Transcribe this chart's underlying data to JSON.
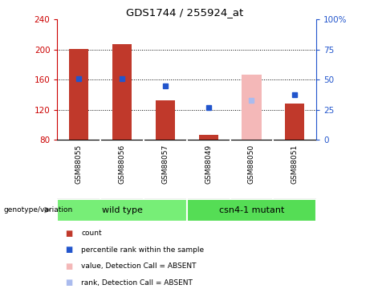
{
  "title": "GDS1744 / 255924_at",
  "samples": [
    "GSM88055",
    "GSM88056",
    "GSM88057",
    "GSM88049",
    "GSM88050",
    "GSM88051"
  ],
  "group_labels": [
    "wild type",
    "csn4-1 mutant"
  ],
  "count_values": [
    201,
    207,
    133,
    87,
    null,
    128
  ],
  "count_absent": [
    null,
    null,
    null,
    null,
    167,
    null
  ],
  "rank_values": [
    161,
    161,
    152,
    123,
    null,
    140
  ],
  "rank_absent": [
    null,
    null,
    null,
    null,
    133,
    null
  ],
  "ylim_left": [
    80,
    240
  ],
  "ylim_right": [
    0,
    100
  ],
  "yticks_left": [
    80,
    120,
    160,
    200,
    240
  ],
  "yticks_right": [
    0,
    25,
    50,
    75,
    100
  ],
  "bar_color": "#c0392b",
  "bar_absent_color": "#f4b8b8",
  "rank_color": "#2255cc",
  "rank_absent_color": "#aabbee",
  "bg_color": "#ffffff",
  "wt_group_color": "#77ee77",
  "mut_group_color": "#55dd55",
  "sample_bg_color": "#cccccc",
  "left_axis_color": "#cc0000",
  "right_axis_color": "#2255cc",
  "bar_width": 0.45,
  "grid_yticks": [
    120,
    160,
    200
  ]
}
